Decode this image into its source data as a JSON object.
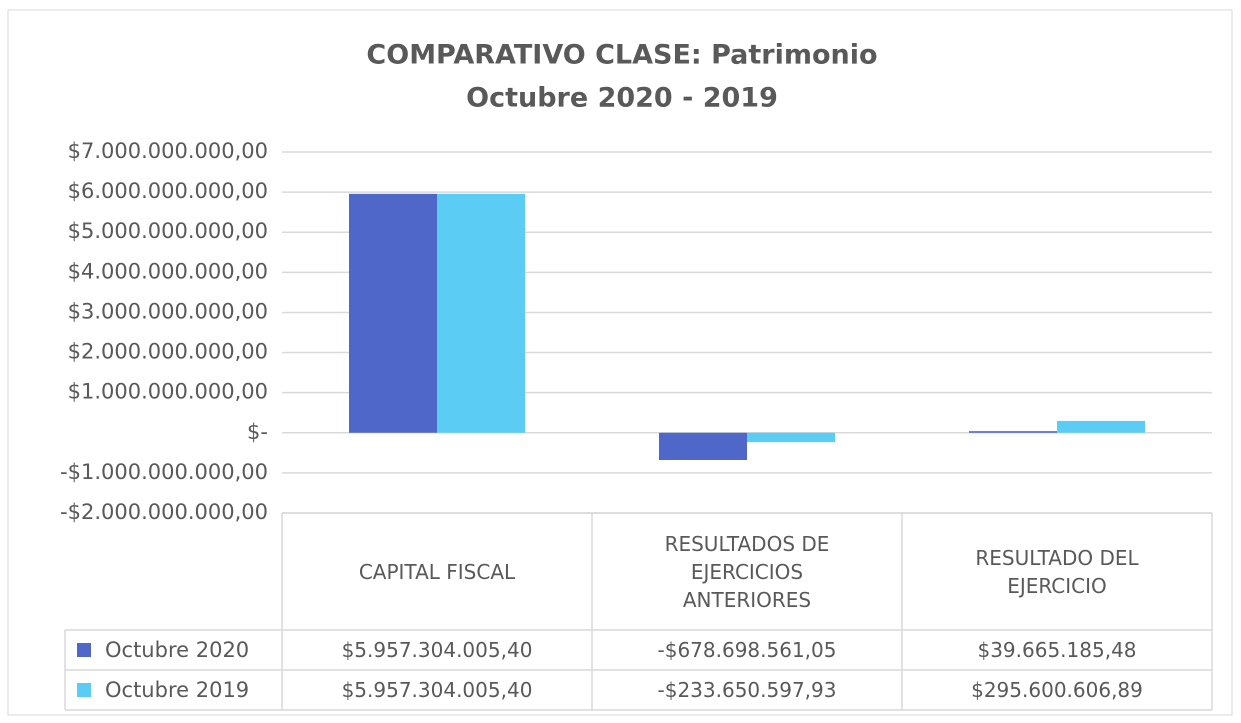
{
  "chart_data": {
    "type": "bar",
    "title": "COMPARATIVO CLASE: Patrimonio",
    "subtitle": "Octubre 2020  - 2019",
    "categories": [
      "CAPITAL FISCAL",
      "RESULTADOS DE EJERCICIOS ANTERIORES",
      "RESULTADO DEL EJERCICIO"
    ],
    "series": [
      {
        "name": "Octubre 2020",
        "color": "#4f67c9",
        "values": [
          5957304005.4,
          -678698561.05,
          39665185.48
        ],
        "value_labels": [
          "$5.957.304.005,40",
          "-$678.698.561,05",
          "$39.665.185,48"
        ]
      },
      {
        "name": "Octubre 2019",
        "color": "#5bcdf4",
        "values": [
          5957304005.4,
          -233650597.93,
          295600606.89
        ],
        "value_labels": [
          "$5.957.304.005,40",
          "-$233.650.597,93",
          "$295.600.606,89"
        ]
      }
    ],
    "ylim": [
      -2000000000,
      7000000000
    ],
    "yticks": [
      {
        "value": 7000000000,
        "label": "$7.000.000.000,00"
      },
      {
        "value": 6000000000,
        "label": "$6.000.000.000,00"
      },
      {
        "value": 5000000000,
        "label": "$5.000.000.000,00"
      },
      {
        "value": 4000000000,
        "label": "$4.000.000.000,00"
      },
      {
        "value": 3000000000,
        "label": "$3.000.000.000,00"
      },
      {
        "value": 2000000000,
        "label": "$2.000.000.000,00"
      },
      {
        "value": 1000000000,
        "label": "$1.000.000.000,00"
      },
      {
        "value": 0,
        "label": "$-"
      },
      {
        "value": -1000000000,
        "label": "-$1.000.000.000,00"
      },
      {
        "value": -2000000000,
        "label": "-$2.000.000.000,00"
      }
    ],
    "grid": true
  }
}
